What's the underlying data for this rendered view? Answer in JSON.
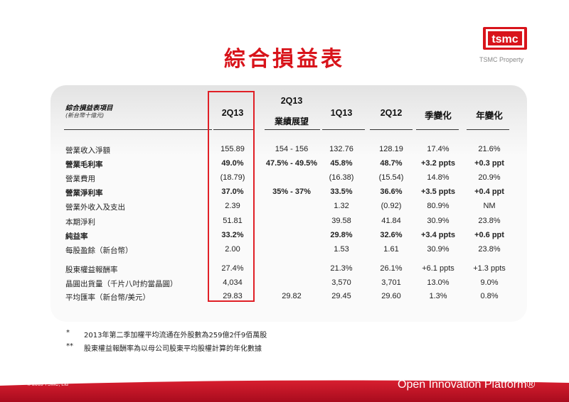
{
  "title": "綜合損益表",
  "logo_text": "tsmc",
  "property": "TSMC Property",
  "header": {
    "label_line1": "綜合損益表項目",
    "label_line2": "(新台幣十億元)",
    "col_2q13": "2Q13",
    "col_guidance_line1": "2Q13",
    "col_guidance_line2": "業績展望",
    "col_1q13": "1Q13",
    "col_2q12": "2Q12",
    "col_qoq": "季變化",
    "col_yoy": "年變化"
  },
  "rows": [
    {
      "label": "營業收入淨額",
      "q213": "155.89",
      "guid": "154 - 156",
      "q113": "132.76",
      "q212": "128.19",
      "qoq": "17.4%",
      "yoy": "21.6%"
    },
    {
      "label": "營業毛利率",
      "q213": "49.0%",
      "guid": "47.5% - 49.5%",
      "q113": "45.8%",
      "q212": "48.7%",
      "qoq": "+3.2 ppts",
      "yoy": "+0.3 ppt"
    },
    {
      "label": "營業費用",
      "q213": "(18.79)",
      "guid": "",
      "q113": "(16.38)",
      "q212": "(15.54)",
      "qoq": "14.8%",
      "yoy": "20.9%"
    },
    {
      "label": "營業淨利率",
      "q213": "37.0%",
      "guid": "35% - 37%",
      "q113": "33.5%",
      "q212": "36.6%",
      "qoq": "+3.5 ppts",
      "yoy": "+0.4 ppt"
    },
    {
      "label": "營業外收入及支出",
      "q213": "2.39",
      "guid": "",
      "q113": "1.32",
      "q212": "(0.92)",
      "qoq": "80.9%",
      "yoy": "NM"
    },
    {
      "label": "本期淨利",
      "q213": "51.81",
      "guid": "",
      "q113": "39.58",
      "q212": "41.84",
      "qoq": "30.9%",
      "yoy": "23.8%"
    },
    {
      "label": "純益率",
      "q213": "33.2%",
      "guid": "",
      "q113": "29.8%",
      "q212": "32.6%",
      "qoq": "+3.4 ppts",
      "yoy": "+0.6 ppt"
    },
    {
      "label": "每股盈餘（新台幣）",
      "q213": "2.00",
      "guid": "",
      "q113": "1.53",
      "q212": "1.61",
      "qoq": "30.9%",
      "yoy": "23.8%"
    },
    {
      "label": "股東權益報酬率",
      "q213": "27.4%",
      "guid": "",
      "q113": "21.3%",
      "q212": "26.1%",
      "qoq": "+6.1 ppts",
      "yoy": "+1.3 ppts"
    },
    {
      "label": "晶圓出貨量（千片八吋約當晶圓）",
      "q213": "4,034",
      "guid": "",
      "q113": "3,570",
      "q212": "3,701",
      "qoq": "13.0%",
      "yoy": "9.0%"
    },
    {
      "label": "平均匯率（新台幣/美元）",
      "q213": "29.83",
      "guid": "29.82",
      "q113": "29.45",
      "q212": "29.60",
      "qoq": "1.3%",
      "yoy": "0.8%"
    }
  ],
  "notes": {
    "n1_mark": "*",
    "n1_text": "2013年第二季加權平均流通在外股數為259億2仟9佰萬股",
    "n2_mark": "**",
    "n2_text": "股東權益報酬率為以母公司股東平均股權計算的年化數據"
  },
  "footer": {
    "copyright": "© 2013 TSMC, Ltd",
    "platform": "Open Innovation Platform®"
  },
  "colors": {
    "accent": "#d8141b",
    "footer": "#c8102e"
  }
}
